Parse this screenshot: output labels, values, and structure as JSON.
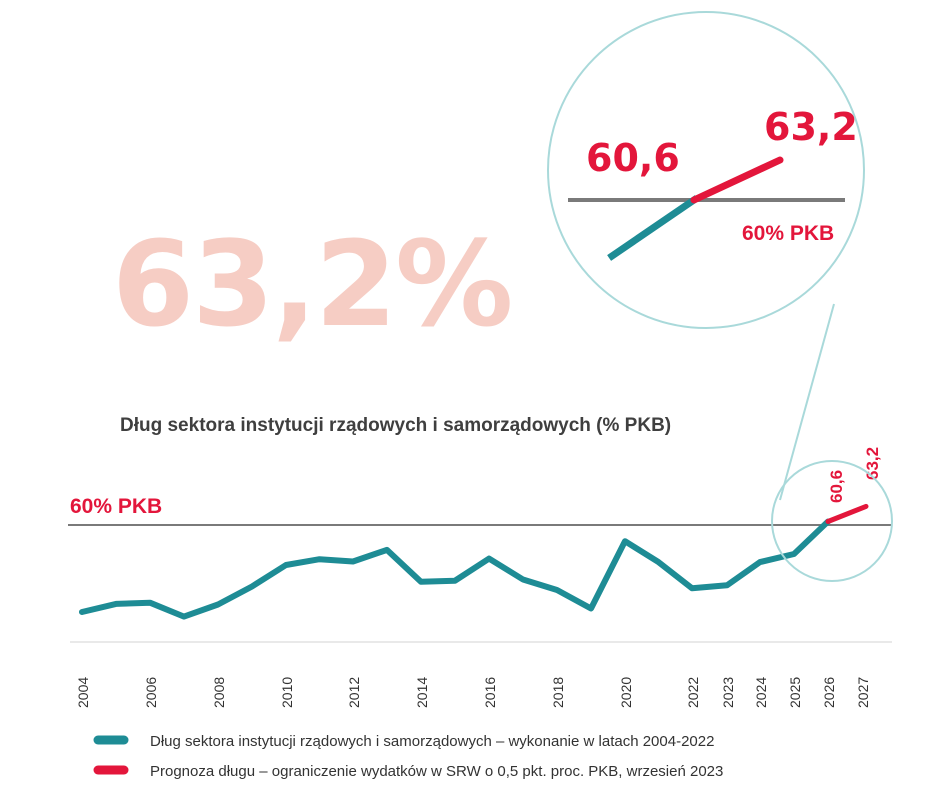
{
  "headline_value": "63,2%",
  "chart_data": {
    "type": "line",
    "title": "Dług sektora instytucji rządowych i samorządowych (% PKB)",
    "xlabel": "",
    "ylabel": "",
    "x_tick_labels": [
      "2004",
      "2006",
      "2008",
      "2010",
      "2012",
      "2014",
      "2016",
      "2018",
      "2020",
      "2022",
      "2023",
      "2024",
      "2025",
      "2026",
      "2027"
    ],
    "reference_line": {
      "label": "60% PKB",
      "value": 60
    },
    "series": [
      {
        "name": "Dług sektora instytucji rządowych i samorządowych – wykonanie w latach 2004-2022",
        "color": "#1e8c95",
        "x": [
          2004,
          2005,
          2006,
          2007,
          2008,
          2009,
          2010,
          2011,
          2012,
          2013,
          2014,
          2015,
          2016,
          2017,
          2018,
          2019,
          2020,
          2021,
          2022,
          2023,
          2024,
          2025,
          2026
        ],
        "values": [
          45.0,
          46.4,
          46.6,
          44.2,
          46.3,
          49.4,
          53.1,
          54.1,
          53.7,
          55.7,
          50.2,
          50.4,
          54.2,
          50.6,
          48.8,
          45.6,
          57.2,
          53.6,
          49.1,
          49.6,
          53.6,
          55.0,
          60.6
        ]
      },
      {
        "name": "Prognoza długu – ograniczenie wydatków w SRW o 0,5 pkt. proc. PKB, wrzesień 2023",
        "color": "#e3163b",
        "x": [
          2026,
          2027
        ],
        "values": [
          60.6,
          63.2
        ]
      }
    ],
    "data_labels": [
      {
        "year": 2026,
        "text": "60,6"
      },
      {
        "year": 2027,
        "text": "63,2"
      }
    ],
    "zoom_inset": {
      "left_label": "60,6",
      "right_label": "63,2",
      "reference_label": "60% PKB"
    }
  },
  "colors": {
    "teal": "#1e8c95",
    "red": "#e3163b",
    "headline": "#f6cdc4",
    "reference_line": "#7a7a7a",
    "circle": "#a9d9da",
    "title_text": "#3f3f3f"
  }
}
